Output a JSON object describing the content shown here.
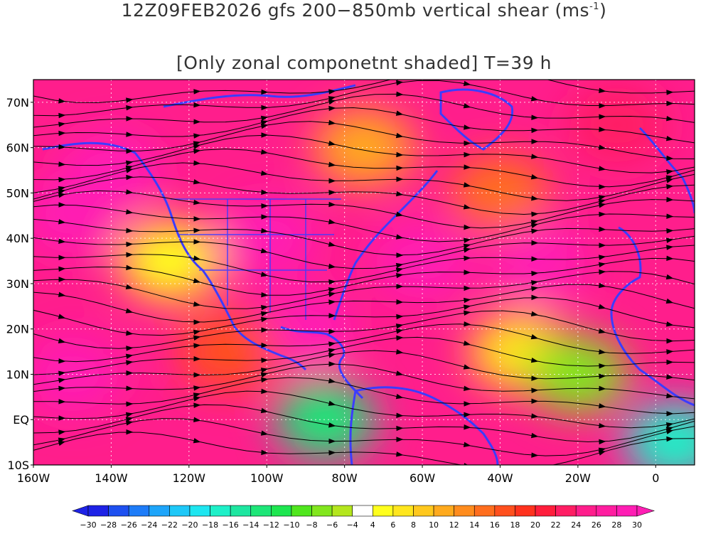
{
  "title": {
    "line1_main": "12Z09FEB2026 gfs 200−850mb vertical shear (ms",
    "line1_exp": "-1",
    "line1_end": ")",
    "line2": "[Only zonal componetnt shaded] T=39 h"
  },
  "axes": {
    "lat_labels": [
      "70N",
      "60N",
      "50N",
      "40N",
      "30N",
      "20N",
      "10N",
      "EQ",
      "10S"
    ],
    "lat_values": [
      70,
      60,
      50,
      40,
      30,
      20,
      10,
      0,
      -10
    ],
    "lon_labels": [
      "160W",
      "140W",
      "120W",
      "100W",
      "80W",
      "60W",
      "40W",
      "20W",
      "0"
    ],
    "lon_values": [
      -160,
      -140,
      -120,
      -100,
      -80,
      -60,
      -40,
      -20,
      0
    ],
    "lon_range": [
      -160,
      10
    ],
    "lat_range": [
      -10,
      75
    ]
  },
  "colorbar": {
    "labels": [
      "-30",
      "-28",
      "-26",
      "-24",
      "-22",
      "-20",
      "-18",
      "-16",
      "-14",
      "-12",
      "-10",
      "-8",
      "-6",
      "-4",
      "4",
      "6",
      "8",
      "10",
      "12",
      "14",
      "16",
      "18",
      "20",
      "22",
      "24",
      "26",
      "28",
      "30"
    ],
    "colors": [
      "#1e22e6",
      "#1e50f0",
      "#1e7cf8",
      "#1ea5fa",
      "#1ec8f8",
      "#1ee6f0",
      "#1ef0c8",
      "#1ee6a0",
      "#1ee678",
      "#1ee650",
      "#50e61e",
      "#82e61e",
      "#b4e61e",
      "#ffffff",
      "#ffff1e",
      "#ffe61e",
      "#ffc81e",
      "#ffaa1e",
      "#ff8c1e",
      "#ff6e1e",
      "#ff501e",
      "#ff321e",
      "#ff1e3c",
      "#ff1e64",
      "#ff1e8c",
      "#ff1ea0",
      "#ff1eb4"
    ]
  },
  "field": {
    "shear_units": "m/s",
    "regions": [
      {
        "lon": -150,
        "lat": 45,
        "value": 28
      },
      {
        "lon": -140,
        "lat": 55,
        "value": 30
      },
      {
        "lon": -125,
        "lat": 35,
        "value": 4
      },
      {
        "lon": -100,
        "lat": 40,
        "value": 30
      },
      {
        "lon": -90,
        "lat": 20,
        "value": 28
      },
      {
        "lon": -75,
        "lat": 60,
        "value": 10
      },
      {
        "lon": -60,
        "lat": 35,
        "value": 30
      },
      {
        "lon": -40,
        "lat": 50,
        "value": 14
      },
      {
        "lon": -30,
        "lat": 35,
        "value": 30
      },
      {
        "lon": -35,
        "lat": 15,
        "value": 6
      },
      {
        "lon": -85,
        "lat": 0,
        "value": -14
      },
      {
        "lon": -110,
        "lat": 15,
        "value": 16
      },
      {
        "lon": -150,
        "lat": 10,
        "value": 28
      },
      {
        "lon": -10,
        "lat": 65,
        "value": 22
      },
      {
        "lon": 5,
        "lat": -5,
        "value": -18
      },
      {
        "lon": -20,
        "lat": 10,
        "value": -8
      }
    ]
  }
}
